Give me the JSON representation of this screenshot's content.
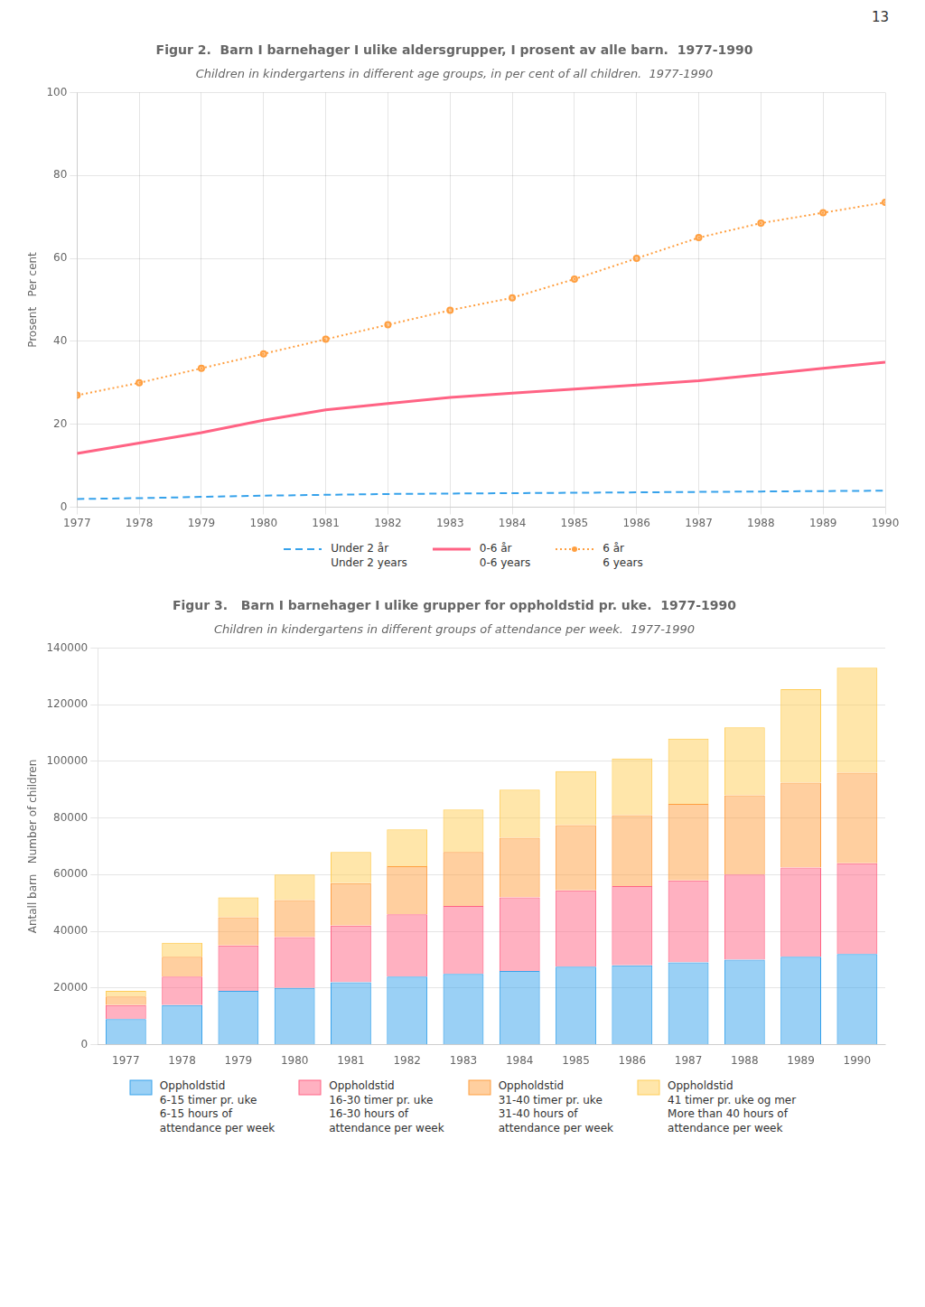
{
  "chart_data": [
    {
      "type": "line",
      "title": "Figur 2.  Barn I barnehager I ulike aldersgrupper, I prosent av alle barn.  1977-1990",
      "subtitle": "Children in kindergartens in different age groups, in per cent of all children.  1977-1990",
      "ylabel": "Prosent   Per cent",
      "annotations": [
        "13"
      ],
      "x": [
        1977,
        1978,
        1979,
        1980,
        1981,
        1982,
        1983,
        1984,
        1985,
        1986,
        1987,
        1988,
        1989,
        1990
      ],
      "xlim": [
        1977,
        1990
      ],
      "xticks": [
        1977,
        1978,
        1979,
        1980,
        1981,
        1982,
        1983,
        1984,
        1985,
        1986,
        1987,
        1988,
        1989,
        1990
      ],
      "ylim": [
        0,
        100
      ],
      "yticks": [
        0,
        20,
        40,
        60,
        80,
        100
      ],
      "grid": true,
      "legend": "bottom",
      "series": [
        {
          "name": "Under 2 år\nUnder 2 years",
          "line_style": "dashed",
          "marker": "none",
          "values": [
            2.0,
            2.2,
            2.5,
            2.8,
            3.0,
            3.2,
            3.3,
            3.4,
            3.5,
            3.6,
            3.7,
            3.8,
            3.9,
            4.0
          ]
        },
        {
          "name": "0-6 år\n0-6 years",
          "line_style": "solid",
          "marker": "none",
          "values": [
            13.0,
            15.5,
            18.0,
            21.0,
            23.5,
            25.0,
            26.5,
            27.5,
            28.5,
            29.5,
            30.5,
            32.0,
            33.5,
            35.0
          ]
        },
        {
          "name": "6 år\n6 years",
          "line_style": "dotted",
          "marker": "point",
          "values": [
            27.0,
            30.0,
            33.5,
            37.0,
            40.5,
            44.0,
            47.5,
            50.5,
            55.0,
            60.0,
            65.0,
            68.5,
            71.0,
            73.5
          ]
        }
      ]
    },
    {
      "type": "bar",
      "title": "Figur 3.   Barn I barnehager I ulike grupper for oppholdstid pr. uke.  1977-1990",
      "subtitle": "Children in kindergartens in different groups of attendance per week.  1977-1990",
      "ylabel": "Antall barn   Number of children",
      "categories": [
        1977,
        1978,
        1979,
        1980,
        1981,
        1982,
        1983,
        1984,
        1985,
        1986,
        1987,
        1988,
        1989,
        1990
      ],
      "ylim": [
        0,
        140000
      ],
      "yticks": [
        0,
        20000,
        40000,
        60000,
        80000,
        100000,
        120000,
        140000
      ],
      "stacked": true,
      "grid": "y",
      "legend": "bottom",
      "series": [
        {
          "name": "Oppholdstid\n6-15 timer pr. uke\n6-15 hours of\nattendance per week",
          "values": [
            9000,
            14000,
            19000,
            20000,
            22000,
            24000,
            25000,
            26000,
            27500,
            28000,
            29000,
            30000,
            31000,
            32000
          ]
        },
        {
          "name": "Oppholdstid\n16-30 timer pr. uke\n16-30 hours of\nattendance per week",
          "values": [
            5000,
            10000,
            16000,
            18000,
            20000,
            22000,
            24000,
            26000,
            27000,
            28000,
            29000,
            30000,
            31500,
            32000
          ]
        },
        {
          "name": "Oppholdstid\n31-40 timer pr. uke\n31-40 hours of\nattendance per week",
          "values": [
            3000,
            7000,
            10000,
            13000,
            15000,
            17000,
            19000,
            21000,
            23000,
            25000,
            27000,
            28000,
            30000,
            32000
          ]
        },
        {
          "name": "Oppholdstid\n41 timer pr. uke og mer\nMore than 40 hours of\nattendance per week",
          "values": [
            2000,
            5000,
            7000,
            9000,
            11000,
            13000,
            15000,
            17000,
            19000,
            20000,
            23000,
            24000,
            33000,
            37000
          ]
        }
      ]
    }
  ]
}
